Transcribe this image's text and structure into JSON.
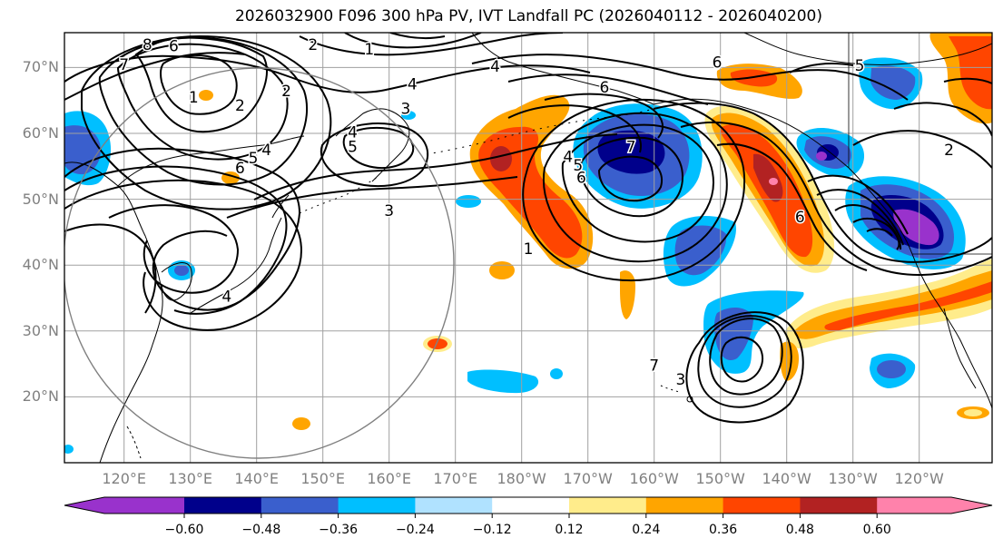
{
  "title": "2026032900 F096 300 hPa PV, IVT Landfall PC (2026040112 - 2026040200)",
  "lat_labels": [
    {
      "label": "70°N",
      "lat": 70
    },
    {
      "label": "60°N",
      "lat": 60
    },
    {
      "label": "50°N",
      "lat": 50
    },
    {
      "label": "40°N",
      "lat": 40
    },
    {
      "label": "30°N",
      "lat": 30
    },
    {
      "label": "20°N",
      "lat": 20
    }
  ],
  "lon_labels": [
    {
      "label": "120°E",
      "lon": 120
    },
    {
      "label": "130°E",
      "lon": 130
    },
    {
      "label": "140°E",
      "lon": 140
    },
    {
      "label": "150°E",
      "lon": 150
    },
    {
      "label": "160°E",
      "lon": 160
    },
    {
      "label": "170°E",
      "lon": 170
    },
    {
      "label": "180°W",
      "lon": 180
    },
    {
      "label": "170°W",
      "lon": 190
    },
    {
      "label": "160°W",
      "lon": 200
    },
    {
      "label": "150°W",
      "lon": 210
    },
    {
      "label": "140°W",
      "lon": 220
    },
    {
      "label": "130°W",
      "lon": 230
    },
    {
      "label": "120°W",
      "lon": 240
    }
  ],
  "colorbar": {
    "colors": [
      "#9932CC",
      "#00008B",
      "#3A5FCD",
      "#00BFFF",
      "#B0E2FF",
      "#FFFFFF",
      "#FFEC8B",
      "#FFA500",
      "#FF4500",
      "#B22222",
      "#FF82AB"
    ],
    "ticks": [
      "−0.60",
      "−0.48",
      "−0.36",
      "−0.24",
      "−0.12",
      "0.12",
      "0.24",
      "0.36",
      "0.48",
      "0.60"
    ]
  },
  "contour_labels": [
    {
      "text": "8",
      "lon": 123.5,
      "lat": 73.5
    },
    {
      "text": "6",
      "lon": 127.5,
      "lat": 73.3
    },
    {
      "text": "7",
      "lon": 120,
      "lat": 70.5
    },
    {
      "text": "2",
      "lon": 148.5,
      "lat": 73.5
    },
    {
      "text": "1",
      "lon": 157,
      "lat": 72.8
    },
    {
      "text": "4",
      "lon": 176,
      "lat": 70.2
    },
    {
      "text": "4",
      "lon": 163.5,
      "lat": 67.5
    },
    {
      "text": "3",
      "lon": 162.5,
      "lat": 63.8
    },
    {
      "text": "2",
      "lon": 137.5,
      "lat": 64.3
    },
    {
      "text": "1",
      "lon": 130.5,
      "lat": 65.5
    },
    {
      "text": "2",
      "lon": 144.5,
      "lat": 66.5
    },
    {
      "text": "4",
      "lon": 141.5,
      "lat": 57.5
    },
    {
      "text": "5",
      "lon": 139.5,
      "lat": 56.3
    },
    {
      "text": "6",
      "lon": 137.5,
      "lat": 54.8
    },
    {
      "text": "4",
      "lon": 154.5,
      "lat": 60.2
    },
    {
      "text": "5",
      "lon": 154.5,
      "lat": 58
    },
    {
      "text": "3",
      "lon": 160,
      "lat": 48.3
    },
    {
      "text": "4",
      "lon": 135.5,
      "lat": 35.3
    },
    {
      "text": "6",
      "lon": 192.5,
      "lat": 67
    },
    {
      "text": "6",
      "lon": 209.5,
      "lat": 70.8
    },
    {
      "text": "5",
      "lon": 231,
      "lat": 70.3
    },
    {
      "text": "4",
      "lon": 187,
      "lat": 56.5
    },
    {
      "text": "5",
      "lon": 188.5,
      "lat": 55.2
    },
    {
      "text": "6",
      "lon": 189,
      "lat": 53.3
    },
    {
      "text": "1",
      "lon": 181,
      "lat": 42.5
    },
    {
      "text": "6",
      "lon": 222,
      "lat": 47.3
    },
    {
      "text": "2",
      "lon": 244.5,
      "lat": 57.5
    },
    {
      "text": "7",
      "lon": 200,
      "lat": 24.8
    },
    {
      "text": "3",
      "lon": 204,
      "lat": 22.7
    },
    {
      "text": "7",
      "lon": 196.5,
      "lat": 58
    }
  ]
}
